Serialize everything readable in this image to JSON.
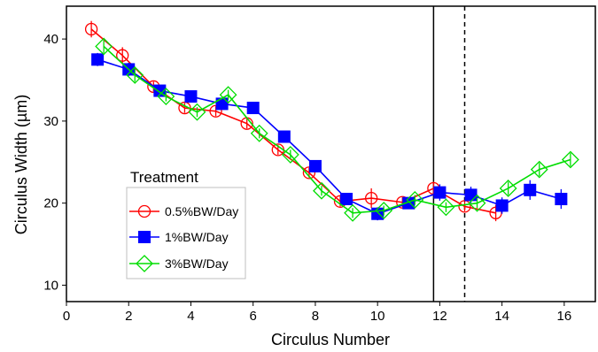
{
  "chart_data": {
    "type": "line",
    "title": "",
    "xlabel": "Circulus Number",
    "ylabel": "Circulus Width (µm)",
    "xlim": [
      0,
      17
    ],
    "ylim": [
      8,
      44
    ],
    "xticks": [
      "0",
      "2",
      "4",
      "6",
      "8",
      "10",
      "12",
      "14",
      "16"
    ],
    "yticks": [
      "10",
      "20",
      "30",
      "40"
    ],
    "grid": false,
    "legend": {
      "title": "Treatment",
      "placement": "lower-left"
    },
    "vertical_lines": [
      {
        "x": 11.8,
        "style": "solid"
      },
      {
        "x": 12.8,
        "style": "dashed"
      }
    ],
    "series": [
      {
        "name": "0.5%BW/Day",
        "color": "#ff0000",
        "marker": "open-circle",
        "x": [
          0.8,
          1.8,
          2.8,
          3.8,
          4.8,
          5.8,
          6.8,
          7.8,
          8.8,
          9.8,
          10.8,
          11.8,
          12.8,
          13.8
        ],
        "y": [
          41.2,
          38.0,
          34.2,
          31.6,
          31.2,
          29.7,
          26.5,
          23.7,
          20.2,
          20.6,
          20.1,
          21.8,
          19.6,
          18.8
        ],
        "err": [
          1.0,
          1.0,
          0.6,
          0.6,
          0.6,
          0.6,
          0.6,
          0.6,
          0.6,
          1.2,
          0.6,
          0.8,
          0.6,
          1.0
        ]
      },
      {
        "name": "1%BW/Day",
        "color": "#0000ff",
        "marker": "filled-square",
        "x": [
          1.0,
          2.0,
          3.0,
          4.0,
          5.0,
          6.0,
          7.0,
          8.0,
          9.0,
          10.0,
          11.0,
          12.0,
          13.0,
          14.0,
          14.9,
          15.9
        ],
        "y": [
          37.5,
          36.3,
          33.7,
          33.0,
          32.1,
          31.6,
          28.1,
          24.5,
          20.5,
          18.7,
          20.0,
          21.3,
          21.0,
          19.7,
          21.6,
          20.5
        ],
        "err": [
          0.8,
          0.8,
          0.6,
          0.6,
          0.6,
          0.6,
          0.6,
          0.6,
          0.6,
          0.8,
          0.6,
          1.0,
          1.0,
          1.0,
          1.2,
          1.2
        ]
      },
      {
        "name": "3%BW/Day",
        "color": "#00dd00",
        "marker": "open-diamond",
        "x": [
          1.2,
          2.2,
          3.2,
          4.2,
          5.2,
          6.2,
          7.2,
          8.2,
          9.2,
          10.2,
          11.2,
          12.2,
          13.2,
          14.2,
          15.2,
          16.2
        ],
        "y": [
          39.1,
          35.6,
          33.0,
          31.1,
          33.2,
          28.5,
          25.9,
          21.5,
          18.8,
          19.1,
          20.4,
          19.5,
          20.0,
          21.8,
          24.1,
          25.3
        ],
        "err": [
          0.8,
          0.8,
          0.6,
          0.6,
          0.6,
          0.6,
          0.6,
          0.6,
          0.6,
          0.6,
          0.6,
          0.6,
          0.6,
          0.8,
          0.8,
          0.8
        ]
      }
    ]
  }
}
